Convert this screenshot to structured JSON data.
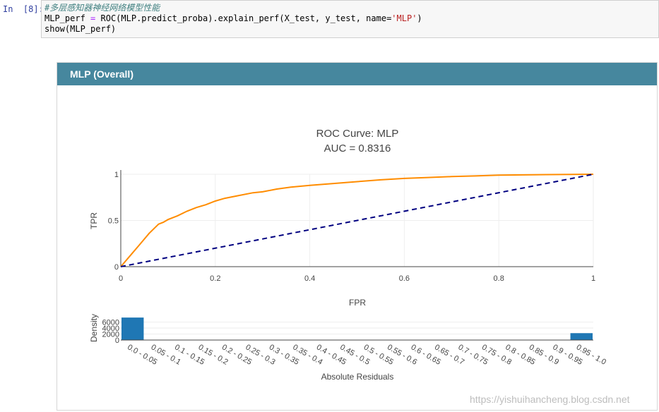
{
  "notebook": {
    "prompt": "In  [8]:",
    "code": {
      "comment": "#多层感知器神经网络模型性能",
      "line2_a": "MLP_perf ",
      "line2_op": "=",
      "line2_b": " ROC(MLP.predict_proba).explain_perf(X_test, y_test, name=",
      "line2_str": "'MLP'",
      "line2_c": ")",
      "line3": "show(MLP_perf)"
    }
  },
  "panel": {
    "title": "MLP (Overall)"
  },
  "chart_data": [
    {
      "type": "line",
      "title": "ROC Curve: MLP",
      "subtitle": "AUC = 0.8316",
      "xlabel": "FPR",
      "ylabel": "TPR",
      "xlim": [
        0,
        1
      ],
      "ylim": [
        0,
        1
      ],
      "x_ticks": [
        "0",
        "0.2",
        "0.4",
        "0.6",
        "0.8",
        "1"
      ],
      "y_ticks": [
        "0",
        "0.5",
        "1"
      ],
      "grid": true,
      "legend": "none",
      "series": [
        {
          "color": "#ff8c00",
          "style": "solid",
          "x": [
            0,
            0.02,
            0.04,
            0.06,
            0.08,
            0.09,
            0.1,
            0.12,
            0.14,
            0.16,
            0.18,
            0.2,
            0.22,
            0.25,
            0.28,
            0.3,
            0.33,
            0.36,
            0.4,
            0.45,
            0.5,
            0.55,
            0.6,
            0.65,
            0.7,
            0.75,
            0.8,
            0.85,
            0.9,
            0.95,
            1.0
          ],
          "y": [
            0,
            0.12,
            0.24,
            0.36,
            0.46,
            0.48,
            0.51,
            0.55,
            0.6,
            0.64,
            0.67,
            0.71,
            0.74,
            0.77,
            0.8,
            0.81,
            0.84,
            0.86,
            0.88,
            0.9,
            0.92,
            0.94,
            0.955,
            0.965,
            0.975,
            0.982,
            0.99,
            0.993,
            0.996,
            0.998,
            1.0
          ]
        },
        {
          "color": "#000080",
          "style": "dashed",
          "x": [
            0,
            1
          ],
          "y": [
            0,
            1
          ]
        }
      ]
    },
    {
      "type": "bar",
      "xlabel": "Absolute Residuals",
      "ylabel": "Density",
      "ylim": [
        0,
        8000
      ],
      "y_ticks": [
        "0",
        "2000",
        "4000",
        "6000"
      ],
      "color": "#1f77b4",
      "categories": [
        "0.0 - 0.05",
        "0.05 - 0.1",
        "0.1 - 0.15",
        "0.15 - 0.2",
        "0.2 - 0.25",
        "0.25 - 0.3",
        "0.3 - 0.35",
        "0.35 - 0.4",
        "0.4 - 0.45",
        "0.45 - 0.5",
        "0.5 - 0.55",
        "0.55 - 0.6",
        "0.6 - 0.65",
        "0.65 - 0.7",
        "0.7 - 0.75",
        "0.75 - 0.8",
        "0.8 - 0.85",
        "0.85 - 0.9",
        "0.9 - 0.95",
        "0.95 - 1.0"
      ],
      "values": [
        7500,
        0,
        0,
        0,
        0,
        0,
        0,
        0,
        0,
        0,
        0,
        0,
        0,
        0,
        0,
        0,
        0,
        0,
        0,
        2300
      ]
    }
  ],
  "watermark": "https://yishuihancheng.blog.csdn.net"
}
